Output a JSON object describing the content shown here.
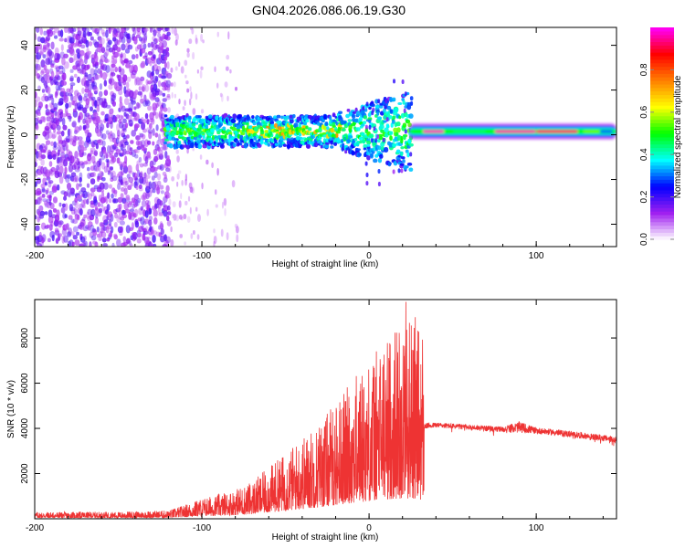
{
  "figure_title": "GN04.2026.086.06.19.G30",
  "chart_data": [
    {
      "type": "heatmap",
      "xlabel": "Height of straight line (km)",
      "ylabel": "Frequency (Hz)",
      "xlim": [
        -200,
        148
      ],
      "ylim": [
        -50,
        48
      ],
      "xticks": [
        -200,
        -100,
        0,
        100
      ],
      "xtick_labels": [
        "-200",
        "-100",
        "0",
        "100"
      ],
      "yticks": [
        -40,
        -20,
        0,
        20,
        40
      ],
      "ytick_labels": [
        "-40",
        "-20",
        "0",
        "20",
        "40"
      ],
      "colorbar": {
        "label": "Normalized spectral amplitude",
        "range": [
          0,
          1
        ],
        "ticks": [
          0.0,
          0.2,
          0.4,
          0.6,
          0.8
        ],
        "tick_labels": [
          "0.0",
          "0.2",
          "0.4",
          "0.6",
          "0.8"
        ],
        "colors": [
          "#ffffff",
          "#a020f0",
          "#0000ff",
          "#00ffff",
          "#00ff00",
          "#ffff00",
          "#ff8000",
          "#ff0000",
          "#ff00ff"
        ]
      },
      "regions": [
        {
          "name": "scattered noise",
          "x_range": [
            -200,
            -122
          ],
          "f_range": [
            -50,
            48
          ],
          "amplitude": 0.15
        },
        {
          "name": "sparse noise",
          "x_range": [
            -122,
            -80
          ],
          "f_range": [
            -50,
            48
          ],
          "amplitude": 0.05
        },
        {
          "name": "broadened carrier",
          "x_range": [
            -122,
            24
          ],
          "f_range": [
            -10,
            10
          ],
          "amplitude": 0.35
        },
        {
          "name": "clean carrier",
          "x_range": [
            24,
            148
          ],
          "f_range": [
            -2,
            4
          ],
          "amplitude": 0.95
        }
      ],
      "carrier_center_hz": 1.5
    },
    {
      "type": "line",
      "xlabel": "Height of straight line (km)",
      "ylabel": "SNR (10 * v/v)",
      "xlim": [
        -200,
        148
      ],
      "ylim": [
        0,
        9700
      ],
      "xticks": [
        -200,
        -100,
        0,
        100
      ],
      "xtick_labels": [
        "-200",
        "-100",
        "0",
        "100"
      ],
      "yticks": [
        2000,
        4000,
        6000,
        8000
      ],
      "ytick_labels": [
        "2000",
        "4000",
        "6000",
        "8000"
      ],
      "color": "#ee3333",
      "series": [
        {
          "name": "SNR",
          "x": [
            -200,
            -150,
            -120,
            -110,
            -100,
            -90,
            -80,
            -70,
            -60,
            -50,
            -40,
            -30,
            -20,
            -10,
            0,
            10,
            20,
            25,
            30,
            32,
            33,
            40,
            60,
            80,
            90,
            100,
            120,
            148
          ],
          "y": [
            150,
            150,
            180,
            300,
            450,
            550,
            650,
            800,
            1100,
            1400,
            1700,
            2000,
            2400,
            2800,
            3100,
            3400,
            3600,
            3600,
            3400,
            3300,
            4100,
            4150,
            4050,
            3950,
            4050,
            3900,
            3750,
            3500
          ],
          "noise": [
            120,
            120,
            150,
            250,
            350,
            400,
            500,
            650,
            900,
            1200,
            1500,
            1800,
            2200,
            2700,
            3200,
            3800,
            4500,
            4800,
            4500,
            4500,
            120,
            120,
            120,
            130,
            250,
            140,
            140,
            140
          ],
          "peak": {
            "x": 22,
            "y": 9600
          }
        }
      ]
    }
  ]
}
